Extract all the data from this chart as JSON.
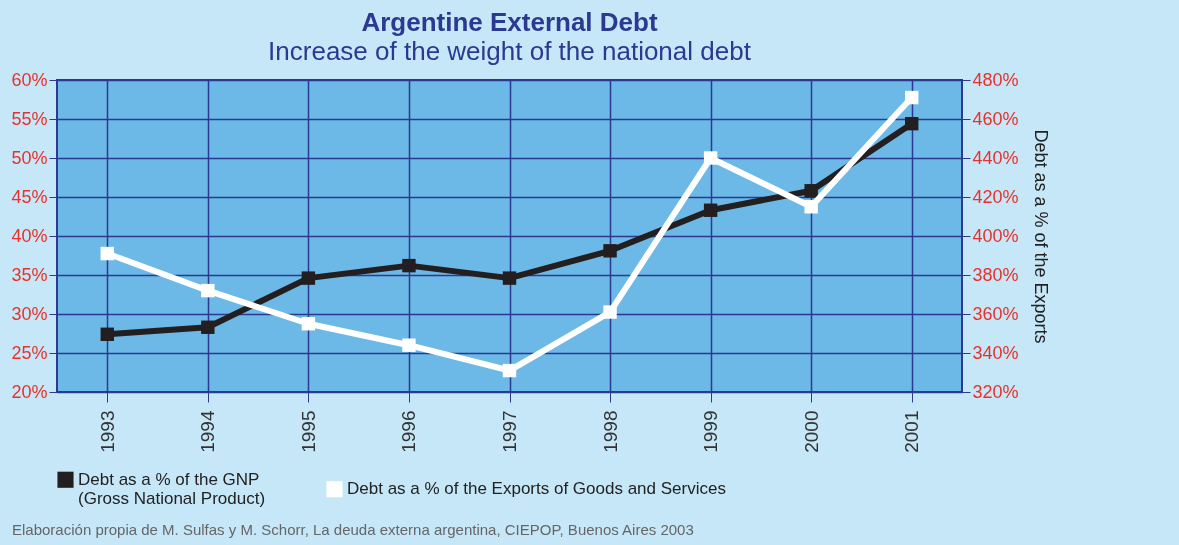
{
  "chart_data": {
    "type": "line",
    "title": "Argentine External Debt",
    "subtitle": "Increase of the weight of the national debt",
    "y2label": "Debt as a % of the Exports",
    "categories": [
      "1993",
      "1994",
      "1995",
      "1996",
      "1997",
      "1998",
      "1999",
      "2000",
      "2001"
    ],
    "series": [
      {
        "name": "Debt as a % of the GNP\n(Gross National Product)",
        "color": "#231f20",
        "values": [
          27.4,
          28.3,
          34.6,
          36.2,
          34.6,
          38.1,
          43.3,
          45.8,
          54.4
        ]
      },
      {
        "name": "Debt as a % of the Exports of Goods and Services",
        "color": "#ffffff",
        "axis": "y2",
        "values": [
          391,
          372,
          355,
          344,
          331,
          361,
          440,
          415,
          471
        ]
      }
    ],
    "ylim": [
      20,
      60
    ],
    "yticks": [
      {
        "value": 20,
        "label": "20%"
      },
      {
        "value": 25,
        "label": "25%"
      },
      {
        "value": 30,
        "label": "30%"
      },
      {
        "value": 35,
        "label": "35%"
      },
      {
        "value": 40,
        "label": "40%"
      },
      {
        "value": 45,
        "label": "45%"
      },
      {
        "value": 50,
        "label": "50%"
      },
      {
        "value": 55,
        "label": "55%"
      },
      {
        "value": 60,
        "label": "60%"
      }
    ],
    "y2lim": [
      320,
      480
    ],
    "y2ticks": [
      {
        "value": 320,
        "label": "320%"
      },
      {
        "value": 340,
        "label": "340%"
      },
      {
        "value": 360,
        "label": "360%"
      },
      {
        "value": 380,
        "label": "380%"
      },
      {
        "value": 400,
        "label": "400%"
      },
      {
        "value": 420,
        "label": "420%"
      },
      {
        "value": 440,
        "label": "440%"
      },
      {
        "value": 460,
        "label": "460%"
      },
      {
        "value": 480,
        "label": "480%"
      }
    ],
    "grid": true,
    "legend": "bottom",
    "marker": "square",
    "line_style": "solid",
    "annotations": [
      "Elaboración propia de M. Sulfas y M. Schorr, La deuda externa argentina, CIEPOP, Buenos Aires 2003"
    ]
  }
}
